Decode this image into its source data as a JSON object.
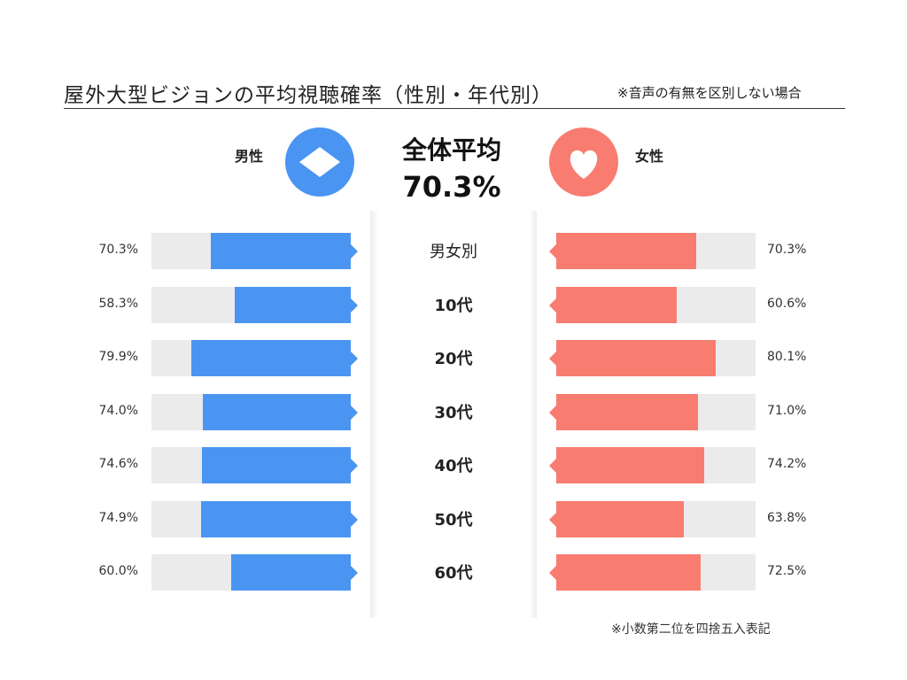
{
  "title": "屋外大型ビジョンの平均視聴確率（性別・年代別）",
  "title_note": "※音声の有無を区別しない場合",
  "legend": {
    "male_label": "男性",
    "female_label": "女性",
    "male_icon": "diamond-icon",
    "female_icon": "heart-icon",
    "male_color": "#4a95f2",
    "female_color": "#f87c70"
  },
  "overall": {
    "label": "全体平均",
    "value_text": "70.3%",
    "value": 70.3
  },
  "footnote": "※小数第二位を四捨五入表記",
  "chart_data": {
    "type": "bar",
    "orientation": "horizontal",
    "layout": "butterfly",
    "xlim": [
      0,
      100
    ],
    "categories": [
      "男女別",
      "10代",
      "20代",
      "30代",
      "40代",
      "50代",
      "60代"
    ],
    "series": [
      {
        "name": "男性",
        "color": "#4a95f2",
        "values": [
          70.3,
          58.3,
          79.9,
          74.0,
          74.6,
          74.9,
          60.0
        ],
        "labels": [
          "70.3%",
          "58.3%",
          "79.9%",
          "74.0%",
          "74.6%",
          "74.9%",
          "60.0%"
        ]
      },
      {
        "name": "女性",
        "color": "#f87c70",
        "values": [
          70.3,
          60.6,
          80.1,
          71.0,
          74.2,
          63.8,
          72.5
        ],
        "labels": [
          "70.3%",
          "60.6%",
          "80.1%",
          "71.0%",
          "74.2%",
          "63.8%",
          "72.5%"
        ]
      }
    ]
  }
}
